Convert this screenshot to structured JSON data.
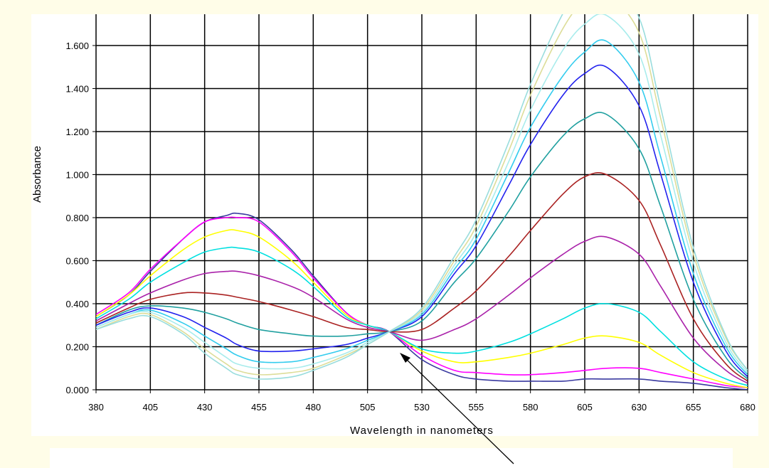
{
  "chart_data": {
    "type": "line",
    "title": "",
    "xlabel": "Wavelength in nanometers",
    "ylabel": "Absorbance",
    "xlim": [
      380,
      680
    ],
    "ylim": [
      0,
      1.75
    ],
    "x_ticks": [
      380,
      405,
      430,
      455,
      480,
      505,
      530,
      555,
      580,
      605,
      630,
      655,
      680
    ],
    "x_tick_labels": [
      "380",
      "405",
      "430",
      "455",
      "480",
      "505",
      "530",
      "555",
      "580",
      "605",
      "630",
      "655",
      "680"
    ],
    "y_ticks": [
      0,
      0.2,
      0.4,
      0.6,
      0.8,
      1.0,
      1.2,
      1.4,
      1.6
    ],
    "y_tick_labels": [
      "0.000",
      "0.200",
      "0.400",
      "0.600",
      "0.800",
      "1.000",
      "1.200",
      "1.400",
      "1.600"
    ],
    "grid": true,
    "annotation": "arrow pointing to isosbestic point near 515 nm, 0.27",
    "x": [
      380,
      395,
      405,
      420,
      430,
      440,
      445,
      455,
      470,
      480,
      495,
      505,
      515,
      530,
      545,
      555,
      570,
      580,
      595,
      605,
      615,
      630,
      640,
      655,
      670,
      680
    ],
    "series": [
      {
        "color": "#3a3aa0",
        "values": [
          0.34,
          0.44,
          0.55,
          0.7,
          0.78,
          0.81,
          0.82,
          0.79,
          0.65,
          0.53,
          0.36,
          0.3,
          0.27,
          0.14,
          0.07,
          0.05,
          0.04,
          0.04,
          0.04,
          0.05,
          0.05,
          0.05,
          0.04,
          0.03,
          0.01,
          0.0
        ]
      },
      {
        "color": "#ff00ff",
        "values": [
          0.35,
          0.45,
          0.56,
          0.7,
          0.78,
          0.8,
          0.8,
          0.78,
          0.64,
          0.52,
          0.36,
          0.3,
          0.27,
          0.16,
          0.09,
          0.08,
          0.07,
          0.07,
          0.08,
          0.09,
          0.1,
          0.1,
          0.08,
          0.05,
          0.02,
          0.01
        ]
      },
      {
        "color": "#ffff00",
        "values": [
          0.34,
          0.44,
          0.53,
          0.65,
          0.71,
          0.74,
          0.74,
          0.71,
          0.6,
          0.5,
          0.35,
          0.3,
          0.27,
          0.18,
          0.13,
          0.13,
          0.15,
          0.17,
          0.21,
          0.24,
          0.25,
          0.22,
          0.16,
          0.08,
          0.03,
          0.01
        ]
      },
      {
        "color": "#00e0e0",
        "values": [
          0.33,
          0.42,
          0.5,
          0.59,
          0.64,
          0.66,
          0.66,
          0.64,
          0.56,
          0.48,
          0.34,
          0.3,
          0.27,
          0.19,
          0.17,
          0.18,
          0.22,
          0.26,
          0.33,
          0.38,
          0.4,
          0.36,
          0.27,
          0.13,
          0.05,
          0.02
        ]
      },
      {
        "color": "#aa22aa",
        "values": [
          0.32,
          0.4,
          0.45,
          0.51,
          0.54,
          0.55,
          0.55,
          0.53,
          0.48,
          0.43,
          0.33,
          0.29,
          0.27,
          0.23,
          0.28,
          0.33,
          0.44,
          0.52,
          0.63,
          0.69,
          0.71,
          0.63,
          0.48,
          0.24,
          0.09,
          0.03
        ]
      },
      {
        "color": "#aa2222",
        "values": [
          0.31,
          0.38,
          0.42,
          0.45,
          0.45,
          0.44,
          0.43,
          0.41,
          0.37,
          0.34,
          0.29,
          0.28,
          0.27,
          0.28,
          0.38,
          0.46,
          0.62,
          0.74,
          0.91,
          0.99,
          1.0,
          0.88,
          0.67,
          0.33,
          0.12,
          0.04
        ]
      },
      {
        "color": "#20a0a0",
        "values": [
          0.3,
          0.37,
          0.39,
          0.38,
          0.36,
          0.33,
          0.31,
          0.28,
          0.26,
          0.25,
          0.25,
          0.26,
          0.27,
          0.32,
          0.5,
          0.61,
          0.83,
          0.99,
          1.18,
          1.26,
          1.28,
          1.12,
          0.85,
          0.42,
          0.15,
          0.05
        ]
      },
      {
        "color": "#2222ee",
        "values": [
          0.3,
          0.36,
          0.38,
          0.34,
          0.29,
          0.24,
          0.21,
          0.18,
          0.18,
          0.19,
          0.21,
          0.24,
          0.27,
          0.34,
          0.54,
          0.67,
          0.95,
          1.14,
          1.37,
          1.47,
          1.5,
          1.32,
          1.0,
          0.5,
          0.18,
          0.06
        ]
      },
      {
        "color": "#33ccee",
        "values": [
          0.29,
          0.35,
          0.37,
          0.31,
          0.25,
          0.19,
          0.16,
          0.13,
          0.13,
          0.15,
          0.19,
          0.23,
          0.27,
          0.35,
          0.56,
          0.7,
          1.01,
          1.22,
          1.46,
          1.57,
          1.62,
          1.43,
          1.08,
          0.54,
          0.2,
          0.07
        ]
      },
      {
        "color": "#a8ecec",
        "values": [
          0.29,
          0.35,
          0.36,
          0.29,
          0.22,
          0.15,
          0.12,
          0.1,
          0.1,
          0.12,
          0.17,
          0.22,
          0.27,
          0.36,
          0.58,
          0.73,
          1.06,
          1.3,
          1.58,
          1.7,
          1.74,
          1.56,
          1.18,
          0.59,
          0.22,
          0.08
        ]
      },
      {
        "color": "#dddd99",
        "values": [
          0.28,
          0.34,
          0.35,
          0.27,
          0.19,
          0.12,
          0.09,
          0.07,
          0.08,
          0.1,
          0.16,
          0.21,
          0.27,
          0.37,
          0.6,
          0.76,
          1.11,
          1.37,
          1.68,
          1.81,
          1.84,
          1.66,
          1.26,
          0.63,
          0.24,
          0.09
        ]
      },
      {
        "color": "#99dddd",
        "values": [
          0.28,
          0.33,
          0.34,
          0.26,
          0.17,
          0.1,
          0.07,
          0.05,
          0.06,
          0.09,
          0.15,
          0.21,
          0.27,
          0.38,
          0.62,
          0.79,
          1.15,
          1.42,
          1.75,
          1.89,
          1.92,
          1.73,
          1.31,
          0.66,
          0.25,
          0.09
        ]
      }
    ]
  }
}
